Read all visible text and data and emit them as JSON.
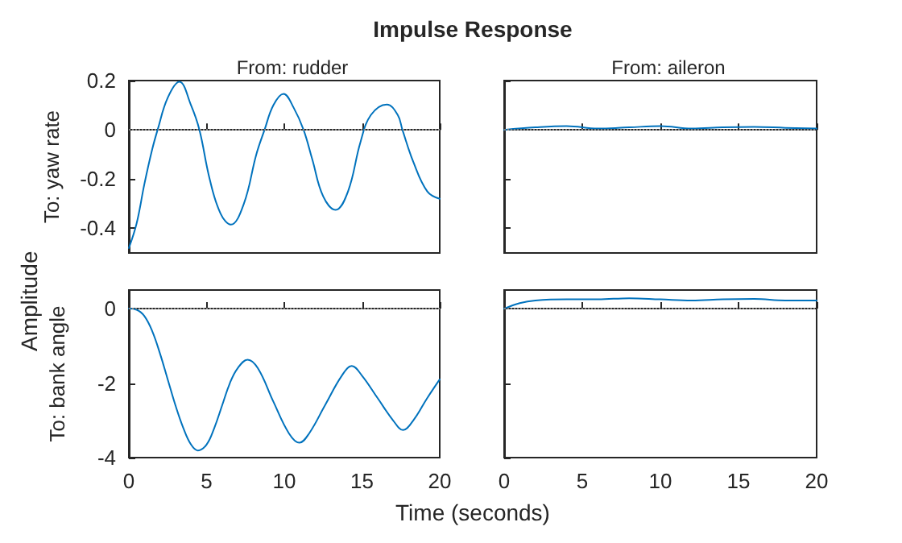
{
  "chart_data": [
    {
      "type": "line",
      "title": "From: rudder",
      "ylabel": "To: yaw rate",
      "color": "#0072bd",
      "x": [
        0,
        0.5,
        1,
        1.5,
        1.85,
        2.5,
        3.25,
        4,
        4.54,
        5.2,
        5.9,
        6.56,
        7.4,
        8.2,
        8.73,
        9.3,
        9.95,
        10.6,
        11.24,
        11.8,
        12.5,
        13.3,
        14.1,
        14.9,
        15.57,
        16.6,
        17.3,
        17.6,
        18.3,
        19.2,
        20
      ],
      "values": [
        -0.48,
        -0.38,
        -0.22,
        -0.08,
        0,
        0.13,
        0.195,
        0.1,
        0,
        -0.2,
        -0.34,
        -0.385,
        -0.3,
        -0.1,
        0,
        0.1,
        0.146,
        0.09,
        0,
        -0.12,
        -0.27,
        -0.325,
        -0.25,
        -0.05,
        0.06,
        0.103,
        0.06,
        0,
        -0.13,
        -0.25,
        -0.28
      ],
      "xlim": [
        0,
        20
      ],
      "xticks": [
        0,
        5,
        10,
        15,
        20
      ],
      "ylim": [
        -0.5,
        0.2
      ],
      "yticks": [
        -0.4,
        -0.2,
        0,
        0.2
      ],
      "tick_labels": "y",
      "ref_lines": [
        {
          "axis": "y",
          "value": 0,
          "color": "#808080",
          "line_style": "dotted"
        }
      ]
    },
    {
      "type": "line",
      "title": "From: aileron",
      "color": "#0072bd",
      "x": [
        0,
        2,
        4,
        6,
        8,
        10,
        12,
        14,
        16,
        18,
        20
      ],
      "values": [
        0,
        0.01,
        0.015,
        0.005,
        0.01,
        0.015,
        0.005,
        0.01,
        0.012,
        0.008,
        0.005
      ],
      "xlim": [
        0,
        20
      ],
      "xticks": [
        0,
        5,
        10,
        15,
        20
      ],
      "ylim": [
        -0.5,
        0.2
      ],
      "yticks": [
        -0.4,
        -0.2,
        0,
        0.2
      ],
      "tick_labels": false,
      "ref_lines": [
        {
          "axis": "y",
          "value": 0,
          "color": "#808080",
          "line_style": "dotted"
        }
      ]
    },
    {
      "type": "line",
      "ylabel": "To: bank angle",
      "color": "#0072bd",
      "x": [
        0,
        0.5,
        1,
        1.5,
        2,
        2.5,
        3,
        3.5,
        4,
        4.44,
        5,
        5.5,
        6,
        6.5,
        7,
        7.64,
        8.3,
        9.3,
        10.3,
        10.97,
        11.6,
        12.65,
        13.7,
        14.34,
        15,
        16,
        17,
        17.64,
        18.3,
        19.2,
        20
      ],
      "values": [
        0,
        -0.03,
        -0.2,
        -0.6,
        -1.2,
        -1.9,
        -2.6,
        -3.2,
        -3.65,
        -3.81,
        -3.65,
        -3.2,
        -2.6,
        -2,
        -1.6,
        -1.37,
        -1.6,
        -2.5,
        -3.35,
        -3.6,
        -3.35,
        -2.57,
        -1.8,
        -1.54,
        -1.8,
        -2.4,
        -3,
        -3.26,
        -3,
        -2.4,
        -1.9
      ],
      "xlim": [
        0,
        20
      ],
      "xticks": [
        0,
        5,
        10,
        15,
        20
      ],
      "ylim": [
        -4,
        0.5
      ],
      "yticks": [
        -4,
        -2,
        0
      ],
      "ref_lines": [
        {
          "axis": "y",
          "value": 0,
          "color": "#808080",
          "line_style": "dotted"
        }
      ]
    },
    {
      "type": "line",
      "color": "#0072bd",
      "x": [
        0,
        1,
        2,
        4,
        6,
        8,
        10,
        12,
        14,
        16,
        18,
        20
      ],
      "values": [
        0,
        0.15,
        0.22,
        0.25,
        0.25,
        0.28,
        0.25,
        0.22,
        0.25,
        0.26,
        0.22,
        0.22
      ],
      "xlim": [
        0,
        20
      ],
      "xticks": [
        0,
        5,
        10,
        15,
        20
      ],
      "ylim": [
        -4,
        0.5
      ],
      "yticks": [
        -4,
        -2,
        0
      ],
      "tick_labels": "x",
      "ref_lines": [
        {
          "axis": "y",
          "value": 0,
          "color": "#808080",
          "line_style": "dotted"
        }
      ]
    },
    {
      "type": "other",
      "title": "Impulse Response",
      "xlabel": "Time (seconds)",
      "ylabel": "Amplitude"
    }
  ]
}
